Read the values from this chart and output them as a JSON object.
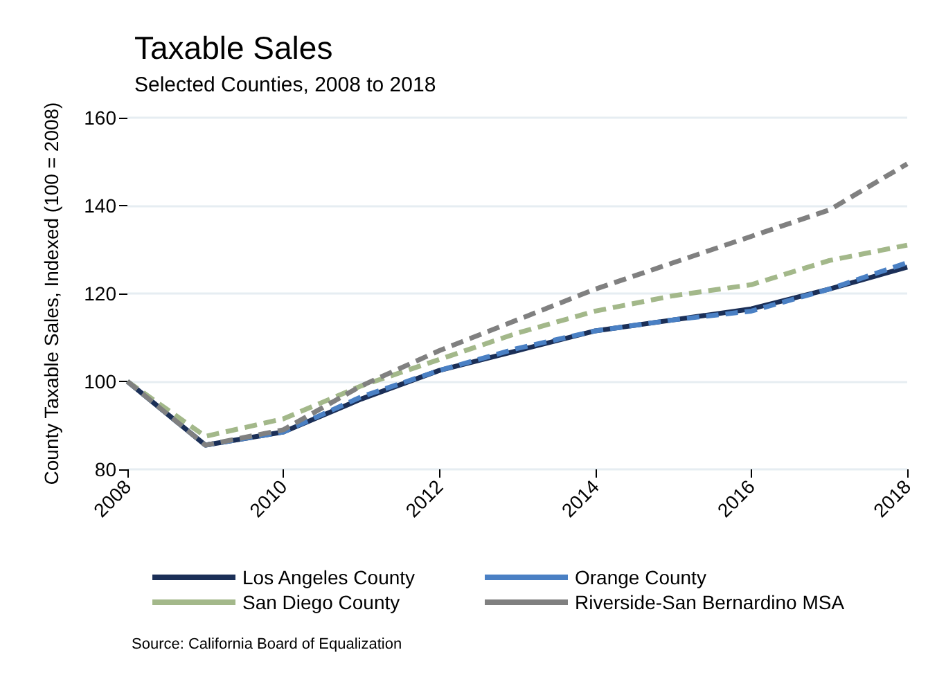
{
  "chart_data": {
    "type": "line",
    "title": "Taxable Sales",
    "subtitle": "Selected Counties, 2008 to 2018",
    "ylabel": "County Taxable Sales, Indexed (100 = 2008)",
    "x": [
      2008,
      2009,
      2010,
      2011,
      2012,
      2013,
      2014,
      2015,
      2016,
      2017,
      2018
    ],
    "series": [
      {
        "name": "Los Angeles County",
        "color": "#1b2f57",
        "line_style": "solid",
        "values": [
          100,
          85.5,
          88.5,
          96,
          102.5,
          107,
          111.5,
          114,
          116.5,
          121,
          126
        ]
      },
      {
        "name": "Orange County",
        "color": "#4a80c4",
        "line_style": "dashed",
        "values": [
          100,
          85.5,
          88.5,
          96.5,
          102.5,
          107.5,
          111.5,
          114,
          116,
          121,
          127
        ]
      },
      {
        "name": "San Diego County",
        "color": "#a3b88a",
        "line_style": "dashed",
        "values": [
          100,
          87.5,
          91.5,
          99,
          105,
          111,
          116,
          119.5,
          122,
          127.5,
          131
        ]
      },
      {
        "name": "Riverside-San Bernardino MSA",
        "color": "#808080",
        "line_style": "dashed",
        "values": [
          100,
          85.5,
          89,
          99,
          107,
          114,
          121,
          127,
          133,
          139,
          149.5
        ]
      }
    ],
    "xlim": [
      2008,
      2018
    ],
    "xticks": [
      2008,
      2010,
      2012,
      2014,
      2016,
      2018
    ],
    "ylim": [
      80,
      160
    ],
    "yticks": [
      80,
      100,
      120,
      140,
      160
    ],
    "grid": "y",
    "legend": "bottom",
    "marker": "none",
    "annotations": [
      "Source: California Board of Equalization"
    ]
  }
}
